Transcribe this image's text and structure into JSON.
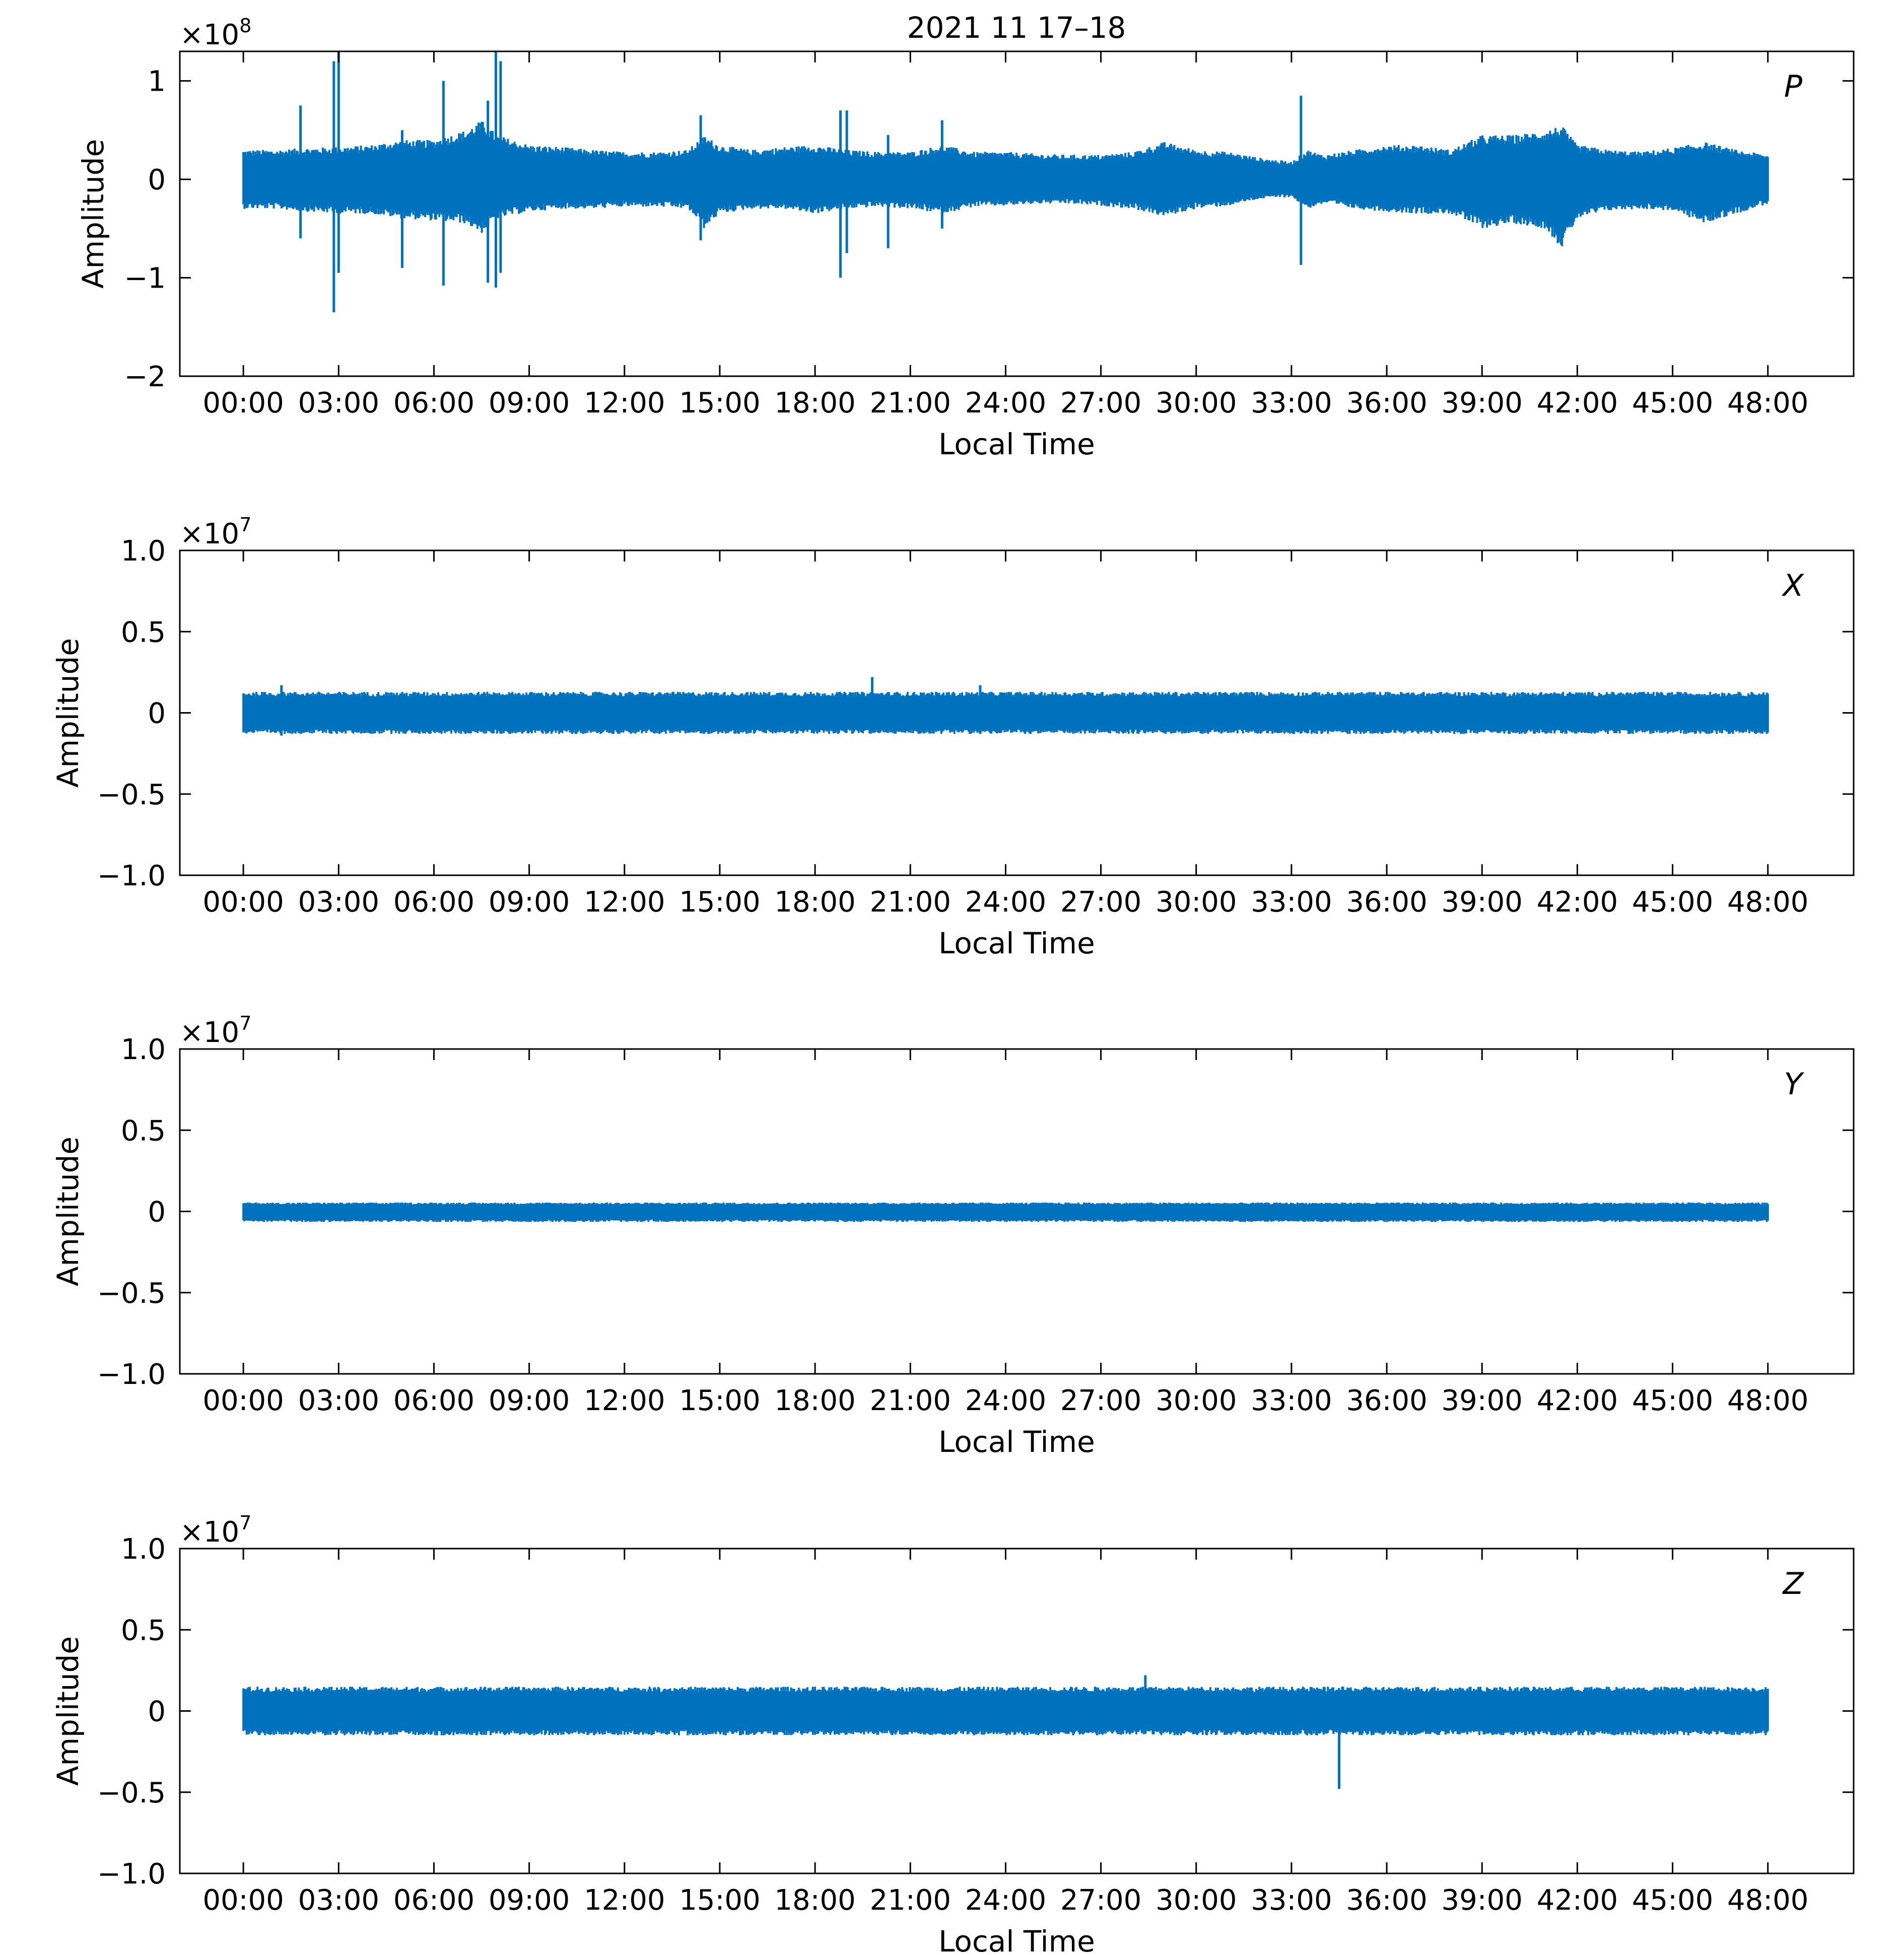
{
  "figure": {
    "title": "2021 11 17–18",
    "color": "#0072BD"
  },
  "chart_data": [
    {
      "type": "line",
      "panel_label": "P",
      "ylabel": "Amplitude",
      "xlabel": "Local Time",
      "exponent_label": "×10",
      "exponent_power": "8",
      "ylim": [
        -2,
        1.3
      ],
      "yticks": [
        -2,
        -1,
        0,
        1
      ],
      "ytick_labels": [
        "−2",
        "−1",
        "0",
        "1"
      ],
      "xlim_hours": [
        -2,
        50.7
      ],
      "xticks_hours": [
        0,
        3,
        6,
        9,
        12,
        15,
        18,
        21,
        24,
        27,
        30,
        33,
        36,
        39,
        42,
        45,
        48
      ],
      "xtick_labels": [
        "00:00",
        "03:00",
        "06:00",
        "09:00",
        "12:00",
        "15:00",
        "18:00",
        "21:00",
        "24:00",
        "27:00",
        "30:00",
        "33:00",
        "36:00",
        "39:00",
        "42:00",
        "45:00",
        "48:00"
      ],
      "envelope": {
        "hours": [
          0,
          1,
          2,
          3,
          4,
          5,
          6,
          7,
          7.5,
          8,
          9,
          10,
          11,
          12,
          13,
          14,
          14.5,
          15,
          16,
          17,
          18,
          19,
          20,
          21,
          22,
          23,
          24,
          25,
          26,
          27,
          28,
          29,
          30,
          31,
          32,
          33,
          33.5,
          34,
          35,
          36,
          37,
          38,
          39,
          40,
          41,
          41.5,
          42,
          43,
          44,
          45,
          46,
          47,
          48
        ],
        "upper": [
          0.3,
          0.3,
          0.32,
          0.33,
          0.35,
          0.4,
          0.4,
          0.5,
          0.6,
          0.45,
          0.35,
          0.33,
          0.3,
          0.28,
          0.28,
          0.3,
          0.45,
          0.35,
          0.3,
          0.33,
          0.35,
          0.3,
          0.28,
          0.28,
          0.35,
          0.28,
          0.28,
          0.26,
          0.25,
          0.25,
          0.28,
          0.38,
          0.3,
          0.28,
          0.22,
          0.18,
          0.3,
          0.25,
          0.3,
          0.35,
          0.35,
          0.3,
          0.45,
          0.45,
          0.5,
          0.55,
          0.35,
          0.3,
          0.28,
          0.32,
          0.38,
          0.3,
          0.25
        ],
        "lower": [
          -0.3,
          -0.3,
          -0.33,
          -0.35,
          -0.35,
          -0.4,
          -0.42,
          -0.45,
          -0.55,
          -0.4,
          -0.33,
          -0.3,
          -0.3,
          -0.28,
          -0.28,
          -0.3,
          -0.5,
          -0.35,
          -0.3,
          -0.3,
          -0.35,
          -0.3,
          -0.28,
          -0.3,
          -0.35,
          -0.28,
          -0.27,
          -0.25,
          -0.25,
          -0.27,
          -0.3,
          -0.38,
          -0.3,
          -0.27,
          -0.2,
          -0.18,
          -0.3,
          -0.25,
          -0.3,
          -0.33,
          -0.35,
          -0.35,
          -0.5,
          -0.45,
          -0.5,
          -0.7,
          -0.4,
          -0.32,
          -0.3,
          -0.32,
          -0.45,
          -0.35,
          -0.25
        ]
      },
      "spikes": [
        {
          "hour": 1.8,
          "min": -0.6,
          "max": 0.75
        },
        {
          "hour": 2.85,
          "min": -1.35,
          "max": 1.2
        },
        {
          "hour": 3.0,
          "min": -0.95,
          "max": 1.3
        },
        {
          "hour": 5.0,
          "min": -0.9,
          "max": 0.5
        },
        {
          "hour": 6.3,
          "min": -1.08,
          "max": 1.0
        },
        {
          "hour": 7.7,
          "min": -1.05,
          "max": 0.8
        },
        {
          "hour": 7.95,
          "min": -1.1,
          "max": 1.3
        },
        {
          "hour": 8.1,
          "min": -0.95,
          "max": 1.2
        },
        {
          "hour": 14.4,
          "min": -0.62,
          "max": 0.65
        },
        {
          "hour": 18.8,
          "min": -1.0,
          "max": 0.7
        },
        {
          "hour": 19.0,
          "min": -0.75,
          "max": 0.7
        },
        {
          "hour": 20.3,
          "min": -0.7,
          "max": 0.45
        },
        {
          "hour": 22.0,
          "min": -0.5,
          "max": 0.6
        },
        {
          "hour": 33.3,
          "min": -0.87,
          "max": 0.85
        }
      ]
    },
    {
      "type": "line",
      "panel_label": "X",
      "ylabel": "Amplitude",
      "xlabel": "Local Time",
      "exponent_label": "×10",
      "exponent_power": "7",
      "ylim": [
        -1,
        1
      ],
      "yticks": [
        -1,
        -0.5,
        0,
        0.5,
        1
      ],
      "ytick_labels": [
        "−1.0",
        "−0.5",
        "0",
        "0.5",
        "1.0"
      ],
      "xlim_hours": [
        -2,
        50.7
      ],
      "xticks_hours": [
        0,
        3,
        6,
        9,
        12,
        15,
        18,
        21,
        24,
        27,
        30,
        33,
        36,
        39,
        42,
        45,
        48
      ],
      "xtick_labels": [
        "00:00",
        "03:00",
        "06:00",
        "09:00",
        "12:00",
        "15:00",
        "18:00",
        "21:00",
        "24:00",
        "27:00",
        "30:00",
        "33:00",
        "36:00",
        "39:00",
        "42:00",
        "45:00",
        "48:00"
      ],
      "envelope": {
        "hours": [
          0,
          48
        ],
        "upper": [
          0.13,
          0.13
        ],
        "lower": [
          -0.13,
          -0.13
        ]
      },
      "spikes": [
        {
          "hour": 19.8,
          "min": -0.12,
          "max": 0.22
        },
        {
          "hour": 1.2,
          "min": -0.14,
          "max": 0.17
        },
        {
          "hour": 23.2,
          "min": -0.13,
          "max": 0.17
        }
      ]
    },
    {
      "type": "line",
      "panel_label": "Y",
      "ylabel": "Amplitude",
      "xlabel": "Local Time",
      "exponent_label": "×10",
      "exponent_power": "7",
      "ylim": [
        -1,
        1
      ],
      "yticks": [
        -1,
        -0.5,
        0,
        0.5,
        1
      ],
      "ytick_labels": [
        "−1.0",
        "−0.5",
        "0",
        "0.5",
        "1.0"
      ],
      "xlim_hours": [
        -2,
        50.7
      ],
      "xticks_hours": [
        0,
        3,
        6,
        9,
        12,
        15,
        18,
        21,
        24,
        27,
        30,
        33,
        36,
        39,
        42,
        45,
        48
      ],
      "xtick_labels": [
        "00:00",
        "03:00",
        "06:00",
        "09:00",
        "12:00",
        "15:00",
        "18:00",
        "21:00",
        "24:00",
        "27:00",
        "30:00",
        "33:00",
        "36:00",
        "39:00",
        "42:00",
        "45:00",
        "48:00"
      ],
      "envelope": {
        "hours": [
          0,
          48
        ],
        "upper": [
          0.055,
          0.055
        ],
        "lower": [
          -0.065,
          -0.065
        ]
      },
      "spikes": []
    },
    {
      "type": "line",
      "panel_label": "Z",
      "ylabel": "Amplitude",
      "xlabel": "Local Time",
      "exponent_label": "×10",
      "exponent_power": "7",
      "ylim": [
        -1,
        1
      ],
      "yticks": [
        -1,
        -0.5,
        0,
        0.5,
        1
      ],
      "ytick_labels": [
        "−1.0",
        "−0.5",
        "0",
        "0.5",
        "1.0"
      ],
      "xlim_hours": [
        -2,
        50.7
      ],
      "xticks_hours": [
        0,
        3,
        6,
        9,
        12,
        15,
        18,
        21,
        24,
        27,
        30,
        33,
        36,
        39,
        42,
        45,
        48
      ],
      "xtick_labels": [
        "00:00",
        "03:00",
        "06:00",
        "09:00",
        "12:00",
        "15:00",
        "18:00",
        "21:00",
        "24:00",
        "27:00",
        "30:00",
        "33:00",
        "36:00",
        "39:00",
        "42:00",
        "45:00",
        "48:00"
      ],
      "envelope": {
        "hours": [
          0,
          48
        ],
        "upper": [
          0.15,
          0.15
        ],
        "lower": [
          -0.15,
          -0.15
        ]
      },
      "spikes": [
        {
          "hour": 28.4,
          "min": -0.14,
          "max": 0.22
        },
        {
          "hour": 34.5,
          "min": -0.48,
          "max": 0.12
        }
      ]
    }
  ]
}
